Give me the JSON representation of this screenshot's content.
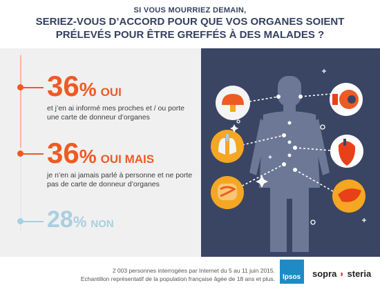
{
  "header": {
    "line1": "SI VOUS MOURRIEZ DEMAIN,",
    "line2": "SERIEZ-VOUS D’ACCORD POUR QUE VOS ORGANES SOIENT",
    "line3": "PRÉLEVÉS POUR ÊTRE GREFFÉS À DES MALADES ?"
  },
  "stats": [
    {
      "number": "36",
      "percent": "%",
      "label": "OUI",
      "desc1": "et j’en ai informé mes proches et / ou porte",
      "desc2": "une carte de donneur d’organes"
    },
    {
      "number": "36",
      "percent": "%",
      "label": "OUI MAIS",
      "desc1": "je n’en ai jamais parlé à personne et ne porte",
      "desc2": "pas de carte de donneur d’organes"
    },
    {
      "number": "28",
      "percent": "%",
      "label": "NON"
    }
  ],
  "illustration": {
    "icons": [
      "brain-icon",
      "eye-icon",
      "lungs-icon",
      "heart-icon",
      "intestine-icon",
      "liver-icon",
      "person-silhouette-icon"
    ],
    "accent_orange": "#ee5a24",
    "background": "#3a4563"
  },
  "footer": {
    "line1": "2 003 personnes interrogées par Internet du 5 au 11 juin 2015.",
    "line2": "Echantillon représentatif de la population française âgée de 18 ans et plus.",
    "ipsos": "Ipsos",
    "sopra_a": "sopra",
    "sopra_b": "steria"
  }
}
